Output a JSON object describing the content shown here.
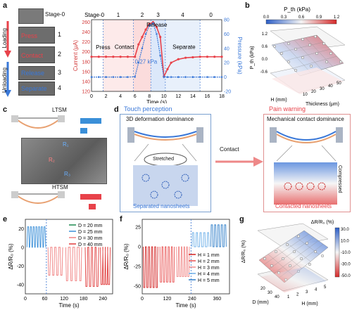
{
  "panel_labels": {
    "a": "a",
    "b": "b",
    "c": "c",
    "d": "d",
    "e": "e",
    "f": "f",
    "g": "g"
  },
  "panel_a": {
    "stage_photos": [
      "Stage-0",
      "Press",
      "Contact",
      "Release",
      "Separate"
    ],
    "stage_nums": [
      "1",
      "2",
      "3",
      "4"
    ],
    "loading_label": "Loading",
    "unloading_label": "Unloading",
    "stage_top": [
      "Stage-0",
      "1",
      "2",
      "3",
      "4",
      "0"
    ],
    "annotations": {
      "release": "Release",
      "press": "Press",
      "contact": "Contact",
      "separate": "Separate",
      "pressure_val": "0.27 kPa"
    },
    "colors": {
      "current": "#e8424a",
      "pressure": "#3a78d8"
    }
  },
  "chart_data": [
    {
      "type": "line",
      "x": [
        0,
        1,
        2,
        3,
        4,
        5,
        6,
        6.5,
        7,
        7.5,
        8,
        8.5,
        9,
        9.5,
        10,
        10.5,
        11,
        12,
        13,
        14,
        15,
        16,
        17,
        18
      ],
      "series": [
        {
          "name": "Current (μA)",
          "values": [
            190,
            190,
            190,
            190,
            190,
            190,
            190,
            215,
            230,
            245,
            256,
            260,
            250,
            230,
            150,
            165,
            178,
            185,
            188,
            189,
            190,
            190,
            190,
            190
          ]
        },
        {
          "name": "Pressure (kPa)",
          "values": [
            0,
            0,
            0,
            0,
            0,
            0,
            0.27,
            20,
            40,
            60,
            72,
            75,
            60,
            30,
            0,
            0,
            0,
            0,
            0,
            0,
            0,
            0,
            0,
            0
          ]
        }
      ],
      "xlabel": "Time (s)",
      "ylabel": "Current (μA)",
      "y2label": "Pressure (kPa)",
      "xlim": [
        0,
        18
      ],
      "ylim": [
        120,
        265
      ],
      "y2lim": [
        -20,
        80
      ],
      "xticks": [
        "0",
        "2",
        "4",
        "6",
        "8",
        "10",
        "12",
        "14",
        "16",
        "18"
      ],
      "yticks": [
        "120",
        "140",
        "160",
        "180",
        "200",
        "220",
        "240",
        "260"
      ],
      "y2ticks": [
        "-20",
        "0",
        "20",
        "40",
        "60",
        "80"
      ]
    },
    {
      "type": "heatmap",
      "title": "P_th (kPa)",
      "colorbar_ticks": [
        "0.0",
        "0.3",
        "0.6",
        "0.9",
        "1.2"
      ],
      "zlabel": "P_th (kPa)",
      "zticks": [
        "-0.6",
        "0.0",
        "0.6",
        "1.2"
      ],
      "xlabel": "Thickness (μm)",
      "ylabel": "H (mm)",
      "xticks": [
        "10",
        "20",
        "30",
        "40",
        "50"
      ]
    },
    {
      "type": "line",
      "xlabel": "Time (s)",
      "ylabel": "ΔR/R₀ (%)",
      "xticks": [
        "0",
        "60",
        "120",
        "180",
        "240"
      ],
      "yticks": [
        "-40",
        "-20",
        "0",
        "20"
      ],
      "series": [
        {
          "name": "D = 20 mm",
          "color": "#1e8a50"
        },
        {
          "name": "D = 25 mm",
          "color": "#3a8fd8"
        },
        {
          "name": "D = 30 mm",
          "color": "#f08080"
        },
        {
          "name": "D = 40 mm",
          "color": "#e03a3a"
        }
      ]
    },
    {
      "type": "line",
      "xlabel": "Time (s)",
      "ylabel": "ΔR/R₀ (%)",
      "xticks": [
        "0",
        "120",
        "240",
        "360"
      ],
      "yticks": [
        "-50",
        "-25",
        "0",
        "25"
      ],
      "series": [
        {
          "name": "H = 1 mm",
          "color": "#d21f1f"
        },
        {
          "name": "H = 2 mm",
          "color": "#e85050"
        },
        {
          "name": "H = 3 mm",
          "color": "#f08a8a"
        },
        {
          "name": "H = 4 mm",
          "color": "#6aaee8"
        },
        {
          "name": "H = 5 mm",
          "color": "#2c7cc8"
        }
      ]
    },
    {
      "type": "heatmap",
      "title": "ΔR/R₀ (%)",
      "zlabel": "ΔR/R₀ (%)",
      "colorbar_ticks": [
        "30.0",
        "10.0",
        "-10.0",
        "-30.0",
        "-50.0"
      ],
      "xlabel": "H (mm)",
      "ylabel": "D (mm)",
      "yticks": [
        "20",
        "30",
        "40"
      ],
      "xticks": [
        "1",
        "2",
        "3",
        "4",
        "5"
      ]
    }
  ],
  "panel_c": {
    "top": "LTSM",
    "bottom": "HTSM",
    "labels": [
      "R₁",
      "R₂",
      "R₃"
    ]
  },
  "panel_d": {
    "touch": "Touch perception",
    "pain": "Pain warning",
    "left_box": "3D deformation dominance",
    "right_box": "Mechanical contact dominance",
    "stretched": "Stretched",
    "separated": "Separated nanosheets",
    "contact_arrow": "Contact",
    "compressed": "Compressed",
    "contacted": "Contacted nanosheets"
  }
}
